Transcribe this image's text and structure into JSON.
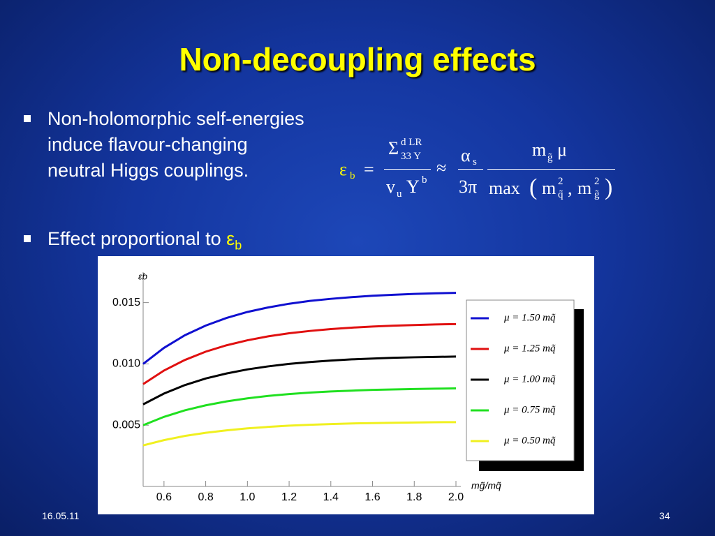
{
  "title": "Non-decoupling effects",
  "bullets": [
    {
      "text": "Non-holomorphic self-energies induce flavour-changing neutral Higgs couplings."
    },
    {
      "text": "Effect proportional to ",
      "symbol": "ε",
      "symbol_sub": "b"
    }
  ],
  "formula": {
    "lhs": "ε",
    "lhs_sub": "b",
    "eq": "=",
    "sigma": "Σ",
    "sigma_sup": "d LR",
    "sigma_sub": "33 Y",
    "den1": "v",
    "den1_sub": "u",
    "den1b": "Y",
    "den1b_sup": "b",
    "approx": "≈",
    "alpha": "α",
    "alpha_sub": "s",
    "three_pi": "3π",
    "num2": "m",
    "num2_sub": "g̃",
    "mu": "μ",
    "max": "max",
    "m1": "m",
    "m1_sup": "2",
    "m1_sub": "q̃",
    "comma": ",",
    "m2": "m",
    "m2_sup": "2",
    "m2_sub": "g̃"
  },
  "footer": {
    "date": "16.05.11",
    "page": "34"
  },
  "chart_data": {
    "type": "line",
    "y_label": "εb",
    "x_label": "mg̃/mq̃",
    "x": [
      0.5,
      0.6,
      0.7,
      0.8,
      0.9,
      1.0,
      1.1,
      1.2,
      1.3,
      1.4,
      1.5,
      1.6,
      1.7,
      1.8,
      1.9,
      2.0
    ],
    "xlim": [
      0.5,
      2.0
    ],
    "ylim": [
      0,
      0.0172
    ],
    "xticks": [
      0.6,
      0.8,
      {
        "value": 1,
        "label": "1.0"
      },
      1.2,
      1.4,
      1.6,
      1.8,
      {
        "value": 2,
        "label": "2.0"
      }
    ],
    "yticks": [
      0.005,
      {
        "value": 0.01,
        "label": "0.010"
      },
      0.015
    ],
    "series": [
      {
        "name": "μ = 1.50 mq̃",
        "color": "#1010d0",
        "values": [
          0.01,
          0.01131,
          0.01234,
          0.01313,
          0.01375,
          0.01424,
          0.01461,
          0.01491,
          0.01514,
          0.01531,
          0.01545,
          0.01556,
          0.01564,
          0.01571,
          0.01576,
          0.0158
        ]
      },
      {
        "name": "μ = 1.25 mq̃",
        "color": "#e01010",
        "values": [
          0.00835,
          0.00946,
          0.01032,
          0.011,
          0.01152,
          0.01193,
          0.01225,
          0.0125,
          0.01269,
          0.01284,
          0.01296,
          0.01305,
          0.01312,
          0.01317,
          0.01322,
          0.01325
        ]
      },
      {
        "name": "μ = 1.00 mq̃",
        "color": "#000000",
        "values": [
          0.0067,
          0.00758,
          0.00827,
          0.00881,
          0.00922,
          0.00955,
          0.0098,
          0.01,
          0.01015,
          0.01027,
          0.01037,
          0.01044,
          0.0105,
          0.01054,
          0.01057,
          0.0106
        ]
      },
      {
        "name": "μ = 0.75 mq̃",
        "color": "#20e020",
        "values": [
          0.005,
          0.00568,
          0.00621,
          0.00662,
          0.00694,
          0.00719,
          0.00739,
          0.00754,
          0.00766,
          0.00775,
          0.00782,
          0.00788,
          0.00792,
          0.00795,
          0.00798,
          0.008
        ]
      },
      {
        "name": "μ = 0.50 mq̃",
        "color": "#f0f020",
        "values": [
          0.00335,
          0.00378,
          0.00412,
          0.00438,
          0.00458,
          0.00474,
          0.00486,
          0.00496,
          0.00503,
          0.00509,
          0.00514,
          0.00517,
          0.0052,
          0.00522,
          0.00524,
          0.00525
        ]
      }
    ]
  }
}
